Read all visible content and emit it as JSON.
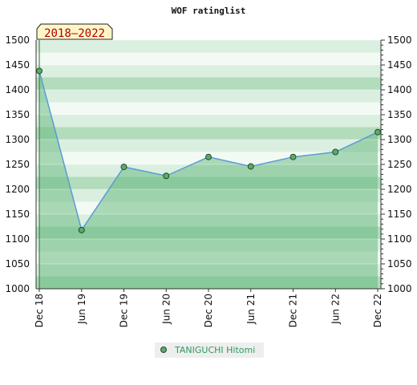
{
  "chart_data": {
    "type": "area",
    "title": "WOF ratinglist",
    "period_badge": "2018–2022",
    "x": [
      "Dec 18",
      "Jun 19",
      "Dec 19",
      "Jun 20",
      "Dec 20",
      "Jun 21",
      "Dec 21",
      "Jun 22",
      "Dec 22"
    ],
    "series": [
      {
        "name": "TANIGUCHI Hitomi",
        "values": [
          1438,
          1118,
          1245,
          1227,
          1265,
          1246,
          1265,
          1275,
          1315
        ]
      }
    ],
    "ylim": [
      1000,
      1500
    ],
    "yticks": [
      1000,
      1050,
      1100,
      1150,
      1200,
      1250,
      1300,
      1350,
      1400,
      1450,
      1500
    ],
    "xlabel": "",
    "ylabel": "",
    "legend_position": "bottom",
    "grid": true,
    "colors": {
      "line": "#5b9bd5",
      "area_fill": "#5fb67a",
      "marker_fill": "#5fa86b",
      "marker_stroke": "#1e4d2b",
      "badge_bg": "#fff6c8",
      "badge_text": "#b00000",
      "legend_text": "#2e9a5c",
      "legend_bg": "#eeeeee"
    }
  }
}
